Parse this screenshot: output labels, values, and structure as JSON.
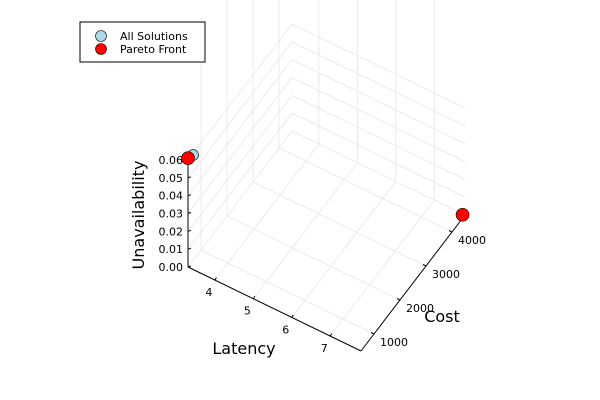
{
  "chart_data": {
    "type": "scatter",
    "title": "",
    "xlabel": "Latency",
    "ylabel": "Cost",
    "zlabel": "Unavailability",
    "xlim": [
      3.3,
      7.8
    ],
    "ylim": [
      500,
      4500
    ],
    "zlim": [
      0,
      0.06
    ],
    "x_ticks": [
      "4",
      "5",
      "6",
      "7"
    ],
    "y_ticks": [
      "1000",
      "2000",
      "3000",
      "4000"
    ],
    "z_ticks": [
      "0.00",
      "0.01",
      "0.02",
      "0.03",
      "0.04",
      "0.05",
      "0.06"
    ],
    "legend_position": "top-left",
    "grid": true,
    "series": [
      {
        "name": "All Solutions",
        "color": "#add8e6",
        "points": [
          {
            "x": 3.35,
            "y": 620,
            "z": 0.061
          },
          {
            "x": 7.75,
            "y": 4480,
            "z": 0.0
          }
        ]
      },
      {
        "name": "Pareto Front",
        "color": "#ff0000",
        "points": [
          {
            "x": 3.3,
            "y": 500,
            "z": 0.061
          },
          {
            "x": 7.75,
            "y": 4480,
            "z": 0.0
          }
        ]
      }
    ]
  }
}
